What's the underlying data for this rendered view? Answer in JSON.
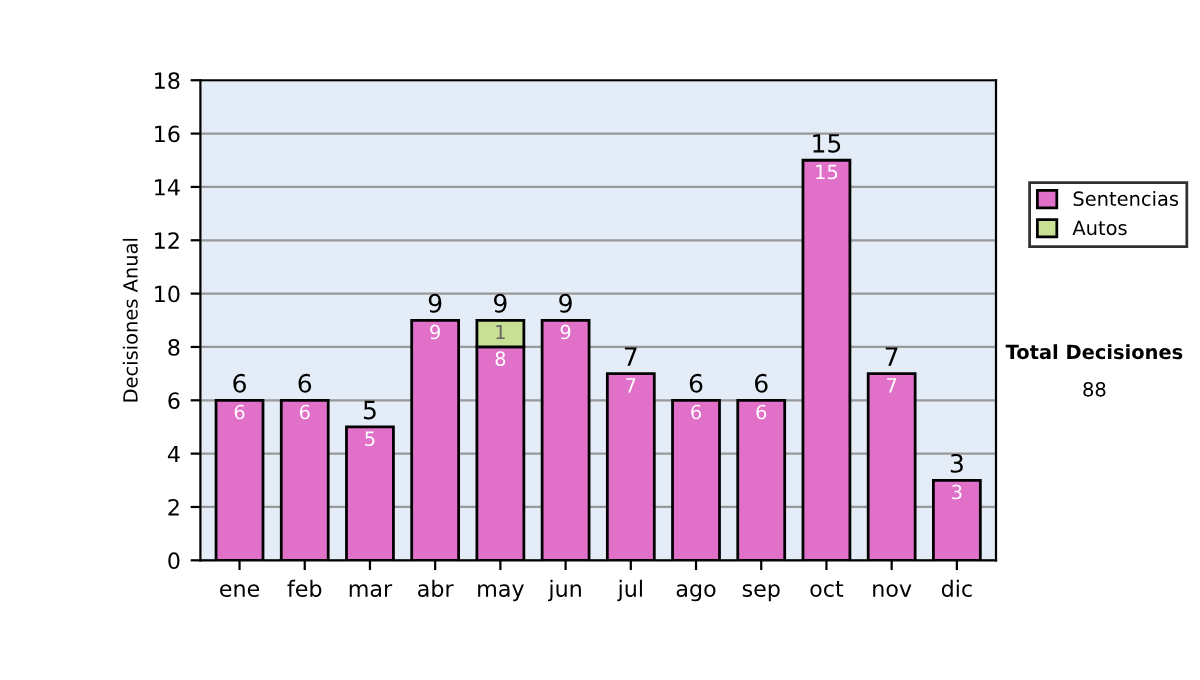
{
  "chart_data": {
    "type": "bar",
    "stacked": true,
    "ylabel": "Decisiones Anual",
    "categories": [
      "ene",
      "feb",
      "mar",
      "abr",
      "may",
      "jun",
      "jul",
      "ago",
      "sep",
      "oct",
      "nov",
      "dic"
    ],
    "series": [
      {
        "name": "Sentencias",
        "color": "#e070c8",
        "values": [
          6,
          6,
          5,
          9,
          8,
          9,
          7,
          6,
          6,
          15,
          7,
          3
        ],
        "value_labels": [
          "6",
          "6",
          "5",
          "9",
          "8",
          "9",
          "7",
          "6",
          "6",
          "15",
          "7",
          "3"
        ]
      },
      {
        "name": "Autos",
        "color": "#c8e094",
        "values": [
          null,
          null,
          null,
          null,
          1,
          null,
          null,
          null,
          null,
          null,
          null,
          null
        ],
        "value_labels": [
          null,
          null,
          null,
          null,
          "1",
          null,
          null,
          null,
          null,
          null,
          null,
          null
        ]
      }
    ],
    "totals": [
      "6",
      "6",
      "5",
      "9",
      "9",
      "9",
      "7",
      "6",
      "6",
      "15",
      "7",
      "3"
    ],
    "ylim": [
      0,
      18
    ],
    "yticks": [
      0,
      2,
      4,
      6,
      8,
      10,
      12,
      14,
      16,
      18
    ],
    "grid": "y",
    "legend": "right",
    "annotations": [
      "Total Decisiones",
      "88"
    ]
  }
}
